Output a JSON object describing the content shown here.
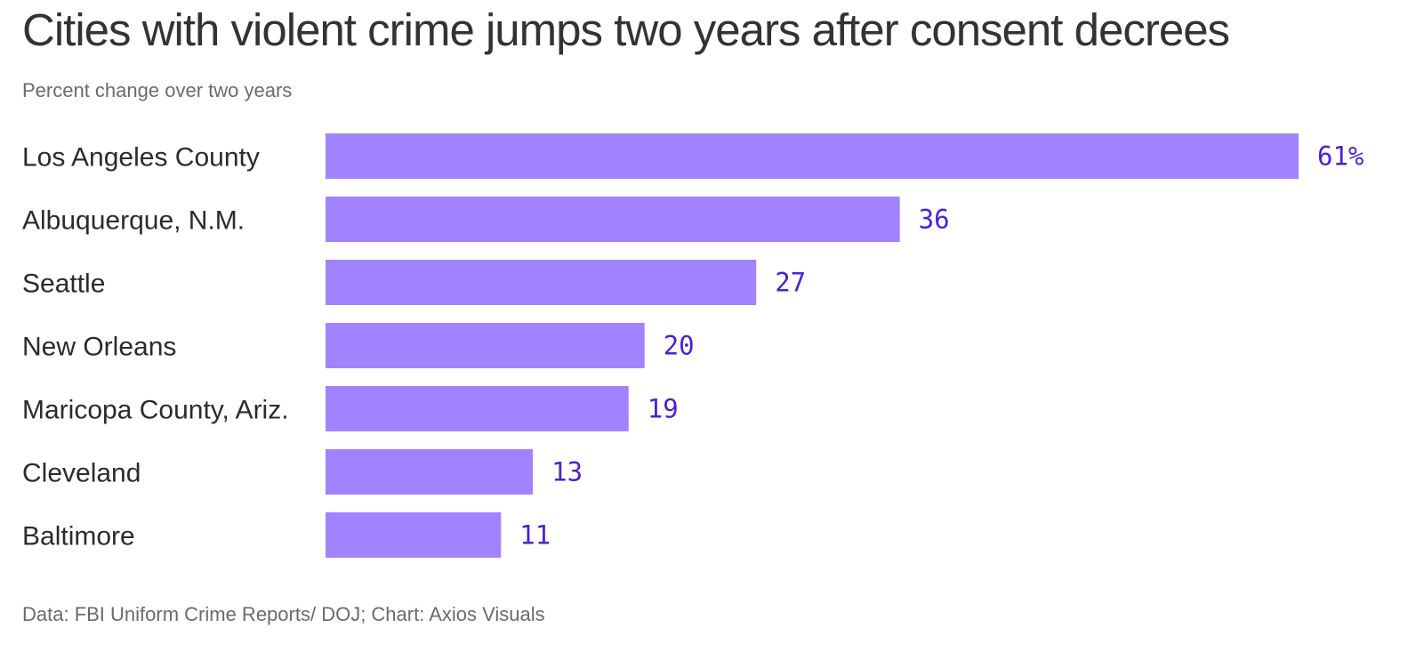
{
  "header": {
    "title": "Cities with violent crime jumps two years after consent decrees",
    "subtitle": "Percent change over two years"
  },
  "footer": {
    "source": "Data: FBI Uniform Crime Reports/ DOJ; Chart: Axios Visuals"
  },
  "colors": {
    "bar": "#a183ff",
    "value_label": "#4b23d1",
    "text": "#333333",
    "muted": "#6b6b6b"
  },
  "chart_data": {
    "type": "bar",
    "orientation": "horizontal",
    "title": "Cities with violent crime jumps two years after consent decrees",
    "subtitle": "Percent change over two years",
    "categories": [
      "Los Angeles County",
      "Albuquerque, N.M.",
      "Seattle",
      "New Orleans",
      "Maricopa County, Ariz.",
      "Cleveland",
      "Baltimore"
    ],
    "values": [
      61,
      36,
      27,
      20,
      19,
      13,
      11
    ],
    "value_labels": [
      "61%",
      "36",
      "27",
      "20",
      "19",
      "13",
      "11"
    ],
    "xlim": [
      0,
      61
    ],
    "grid": false,
    "legend": "none"
  }
}
